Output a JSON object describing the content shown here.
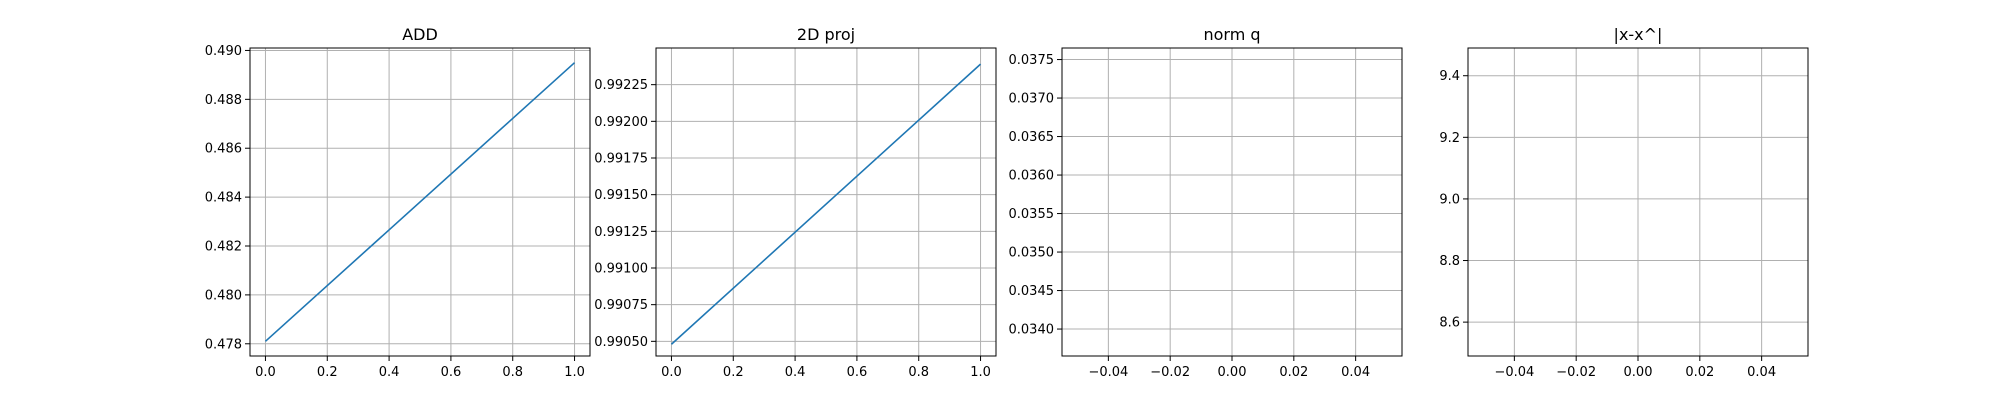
{
  "chart_data": [
    {
      "type": "line",
      "title": "ADD",
      "xlabel": "",
      "ylabel": "",
      "grid": true,
      "legend": "none",
      "xlim": [
        -0.05,
        1.05
      ],
      "ylim": [
        0.4775,
        0.4901
      ],
      "xticks": [
        0.0,
        0.2,
        0.4,
        0.6,
        0.8,
        1.0
      ],
      "xtick_labels": [
        "0.0",
        "0.2",
        "0.4",
        "0.6",
        "0.8",
        "1.0"
      ],
      "yticks": [
        0.478,
        0.48,
        0.482,
        0.484,
        0.486,
        0.488,
        0.49
      ],
      "ytick_labels": [
        "0.478",
        "0.480",
        "0.482",
        "0.484",
        "0.486",
        "0.488",
        "0.490"
      ],
      "series": [
        {
          "x": [
            0.0,
            1.0
          ],
          "y": [
            0.4781,
            0.4895
          ],
          "color": "#1f77b4"
        }
      ]
    },
    {
      "type": "line",
      "title": "2D proj",
      "xlabel": "",
      "ylabel": "",
      "grid": true,
      "legend": "none",
      "xlim": [
        -0.05,
        1.05
      ],
      "ylim": [
        0.9904,
        0.9925
      ],
      "xticks": [
        0.0,
        0.2,
        0.4,
        0.6,
        0.8,
        1.0
      ],
      "xtick_labels": [
        "0.0",
        "0.2",
        "0.4",
        "0.6",
        "0.8",
        "1.0"
      ],
      "yticks": [
        0.9905,
        0.99075,
        0.991,
        0.99125,
        0.9915,
        0.99175,
        0.992,
        0.99225
      ],
      "ytick_labels": [
        "0.99050",
        "0.99075",
        "0.99100",
        "0.99125",
        "0.99150",
        "0.99175",
        "0.99200",
        "0.99225"
      ],
      "series": [
        {
          "x": [
            0.0,
            1.0
          ],
          "y": [
            0.99048,
            0.99239
          ],
          "color": "#1f77b4"
        }
      ]
    },
    {
      "type": "line",
      "title": "norm q",
      "xlabel": "",
      "ylabel": "",
      "grid": true,
      "legend": "none",
      "xlim": [
        -0.055,
        0.055
      ],
      "ylim": [
        0.03365,
        0.03765
      ],
      "xticks": [
        -0.04,
        -0.02,
        0.0,
        0.02,
        0.04
      ],
      "xtick_labels": [
        "−0.04",
        "−0.02",
        "0.00",
        "0.02",
        "0.04"
      ],
      "yticks": [
        0.034,
        0.0345,
        0.035,
        0.0355,
        0.036,
        0.0365,
        0.037,
        0.0375
      ],
      "ytick_labels": [
        "0.0340",
        "0.0345",
        "0.0350",
        "0.0355",
        "0.0360",
        "0.0365",
        "0.0370",
        "0.0375"
      ],
      "series": []
    },
    {
      "type": "line",
      "title": "|x-x^|",
      "xlabel": "",
      "ylabel": "",
      "grid": true,
      "legend": "none",
      "xlim": [
        -0.055,
        0.055
      ],
      "ylim": [
        8.49,
        9.49
      ],
      "xticks": [
        -0.04,
        -0.02,
        0.0,
        0.02,
        0.04
      ],
      "xtick_labels": [
        "−0.04",
        "−0.02",
        "0.00",
        "0.02",
        "0.04"
      ],
      "yticks": [
        8.6,
        8.8,
        9.0,
        9.2,
        9.4
      ],
      "ytick_labels": [
        "8.6",
        "8.8",
        "9.0",
        "9.2",
        "9.4"
      ],
      "series": []
    }
  ]
}
